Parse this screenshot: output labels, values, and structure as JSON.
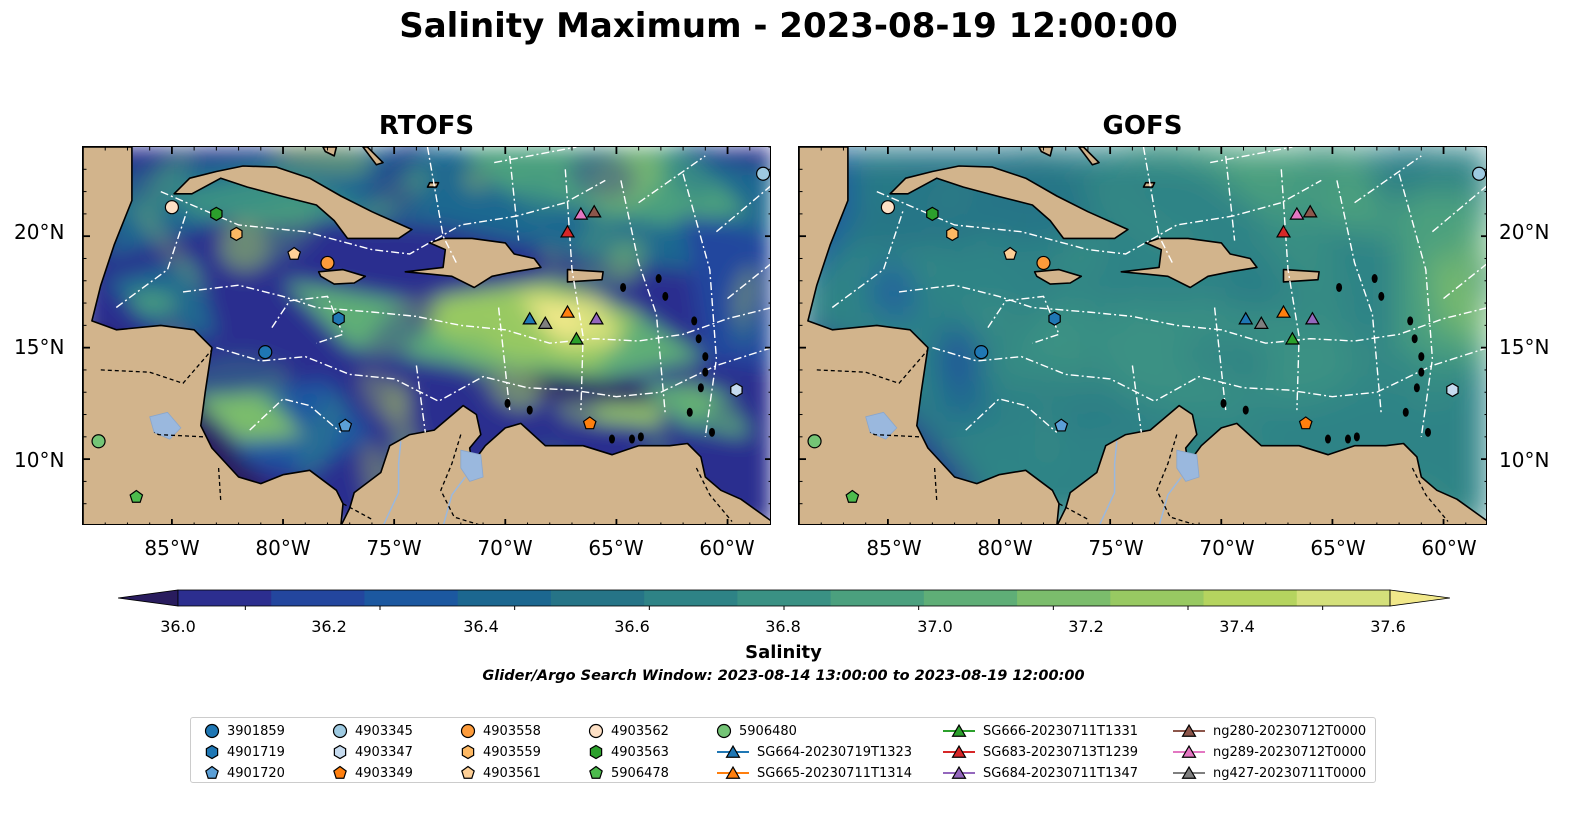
{
  "title": "Salinity Maximum - 2023-08-19 12:00:00",
  "panels": [
    {
      "title": "RTOFS"
    },
    {
      "title": "GOFS"
    }
  ],
  "axes": {
    "lon_ticks": [
      "85°W",
      "80°W",
      "75°W",
      "70°W",
      "65°W",
      "60°W"
    ],
    "lat_ticks": [
      "20°N",
      "15°N",
      "10°N"
    ],
    "lon_range": [
      -89,
      -58
    ],
    "lat_range": [
      7,
      24
    ]
  },
  "colorbar": {
    "label": "Salinity",
    "ticks": [
      "36.0",
      "36.2",
      "36.4",
      "36.6",
      "36.8",
      "37.0",
      "37.2",
      "37.4",
      "37.6"
    ],
    "range": [
      35.9,
      37.7
    ],
    "colors": [
      "#291c5e",
      "#2c2e8f",
      "#23469e",
      "#1c58a0",
      "#1c6790",
      "#267487",
      "#2e8386",
      "#3a9184",
      "#4ba07e",
      "#5fae77",
      "#7bbd6c",
      "#98c962",
      "#b5d45f",
      "#d4e07b",
      "#f1e88a"
    ]
  },
  "search_window": "Glider/Argo Search Window: 2023-08-14 13:00:00 to 2023-08-19 12:00:00",
  "colors": {
    "land": "#d2b48c",
    "lake": "#9ab8de",
    "ocean_deep": "#291c5e"
  },
  "legend": {
    "entries": [
      {
        "label": "3901859",
        "marker": "circle",
        "color": "#1f77b4",
        "line": false
      },
      {
        "label": "4901719",
        "marker": "hexagon",
        "color": "#1f77b4",
        "line": false
      },
      {
        "label": "4901720",
        "marker": "pentagon",
        "color": "#5b9fd6",
        "line": false
      },
      {
        "label": "4903345",
        "marker": "circle",
        "color": "#9ecae1",
        "line": false
      },
      {
        "label": "4903347",
        "marker": "hexagon",
        "color": "#c6dbef",
        "line": false
      },
      {
        "label": "4903349",
        "marker": "pentagon",
        "color": "#ff7f0e",
        "line": false
      },
      {
        "label": "4903558",
        "marker": "circle",
        "color": "#fd9b3a",
        "line": false
      },
      {
        "label": "4903559",
        "marker": "hexagon",
        "color": "#fdb863",
        "line": false
      },
      {
        "label": "4903561",
        "marker": "pentagon",
        "color": "#fdcf96",
        "line": false
      },
      {
        "label": "4903562",
        "marker": "circle",
        "color": "#fde0c5",
        "line": false
      },
      {
        "label": "4903563",
        "marker": "hexagon",
        "color": "#2ca02c",
        "line": false
      },
      {
        "label": "5906478",
        "marker": "pentagon",
        "color": "#4dbb4d",
        "line": false
      },
      {
        "label": "5906480",
        "marker": "circle",
        "color": "#74c476",
        "line": false
      },
      {
        "label": "SG664-20230719T1323",
        "marker": "triangle",
        "color": "#1f77b4",
        "line": true
      },
      {
        "label": "SG665-20230711T1314",
        "marker": "triangle",
        "color": "#ff7f0e",
        "line": true
      },
      {
        "label": "SG666-20230711T1331",
        "marker": "triangle",
        "color": "#2ca02c",
        "line": true
      },
      {
        "label": "SG683-20230713T1239",
        "marker": "triangle",
        "color": "#d62728",
        "line": true
      },
      {
        "label": "SG684-20230711T1347",
        "marker": "triangle",
        "color": "#9467bd",
        "line": true
      },
      {
        "label": "ng280-20230712T0000",
        "marker": "triangle",
        "color": "#8c564b",
        "line": true
      },
      {
        "label": "ng289-20230712T0000",
        "marker": "triangle",
        "color": "#e377c2",
        "line": true
      },
      {
        "label": "ng427-20230711T0000",
        "marker": "triangle",
        "color": "#7f7f7f",
        "line": true
      }
    ]
  },
  "observations": [
    {
      "id": "3901859",
      "lon": -80.8,
      "lat": 14.8
    },
    {
      "id": "4901719",
      "lon": -77.5,
      "lat": 16.3
    },
    {
      "id": "4901720",
      "lon": -77.2,
      "lat": 11.5
    },
    {
      "id": "4903345",
      "lon": -58.4,
      "lat": 22.8
    },
    {
      "id": "4903347",
      "lon": -59.6,
      "lat": 13.1
    },
    {
      "id": "4903349",
      "lon": -66.2,
      "lat": 11.6
    },
    {
      "id": "4903558",
      "lon": -78.0,
      "lat": 18.8
    },
    {
      "id": "4903559",
      "lon": -82.1,
      "lat": 20.1
    },
    {
      "id": "4903561",
      "lon": -79.5,
      "lat": 19.2
    },
    {
      "id": "4903562",
      "lon": -85.0,
      "lat": 21.3
    },
    {
      "id": "4903563",
      "lon": -83.0,
      "lat": 21.0
    },
    {
      "id": "5906478",
      "lon": -86.6,
      "lat": 8.3
    },
    {
      "id": "5906480",
      "lon": -88.3,
      "lat": 10.8
    },
    {
      "id": "SG664-20230719T1323",
      "lon": -68.9,
      "lat": 16.3
    },
    {
      "id": "SG665-20230711T1314",
      "lon": -67.2,
      "lat": 16.6
    },
    {
      "id": "SG666-20230711T1331",
      "lon": -66.8,
      "lat": 15.4
    },
    {
      "id": "SG683-20230713T1239",
      "lon": -67.2,
      "lat": 20.2
    },
    {
      "id": "SG684-20230711T1347",
      "lon": -65.9,
      "lat": 16.3
    },
    {
      "id": "ng280-20230712T0000",
      "lon": -66.0,
      "lat": 21.1
    },
    {
      "id": "ng289-20230712T0000",
      "lon": -66.6,
      "lat": 21.0
    },
    {
      "id": "ng427-20230711T0000",
      "lon": -68.2,
      "lat": 16.1
    }
  ]
}
